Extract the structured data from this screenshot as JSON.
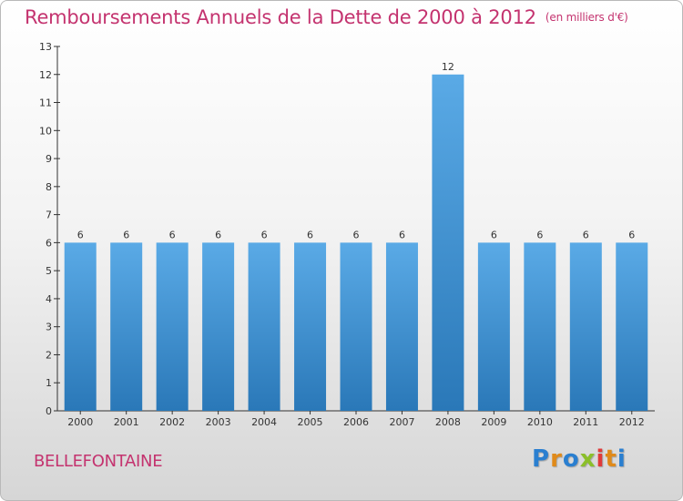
{
  "header": {
    "title": "Remboursements Annuels de la Dette de 2000 à 2012",
    "unit": "(en milliers d'€)"
  },
  "footer": {
    "commune": "BELLEFONTAINE",
    "logo": "Proxiti"
  },
  "colors": {
    "title": "#c4336f",
    "bar_top": "#5aaae6",
    "bar_bottom": "#2a78b8",
    "logo_letters": [
      "#2a7fd0",
      "#e08a1a",
      "#2a7fd0",
      "#8bbf2a",
      "#e03a3a",
      "#e08a1a",
      "#2a7fd0"
    ]
  },
  "chart_data": {
    "type": "bar",
    "categories": [
      "2000",
      "2001",
      "2002",
      "2003",
      "2004",
      "2005",
      "2006",
      "2007",
      "2008",
      "2009",
      "2010",
      "2011",
      "2012"
    ],
    "values": [
      6,
      6,
      6,
      6,
      6,
      6,
      6,
      6,
      12,
      6,
      6,
      6,
      6
    ],
    "ylim": [
      0,
      13
    ],
    "yticks": [
      0,
      1,
      2,
      3,
      4,
      5,
      6,
      7,
      8,
      9,
      10,
      11,
      12,
      13
    ],
    "grid": false,
    "legend": "none"
  }
}
